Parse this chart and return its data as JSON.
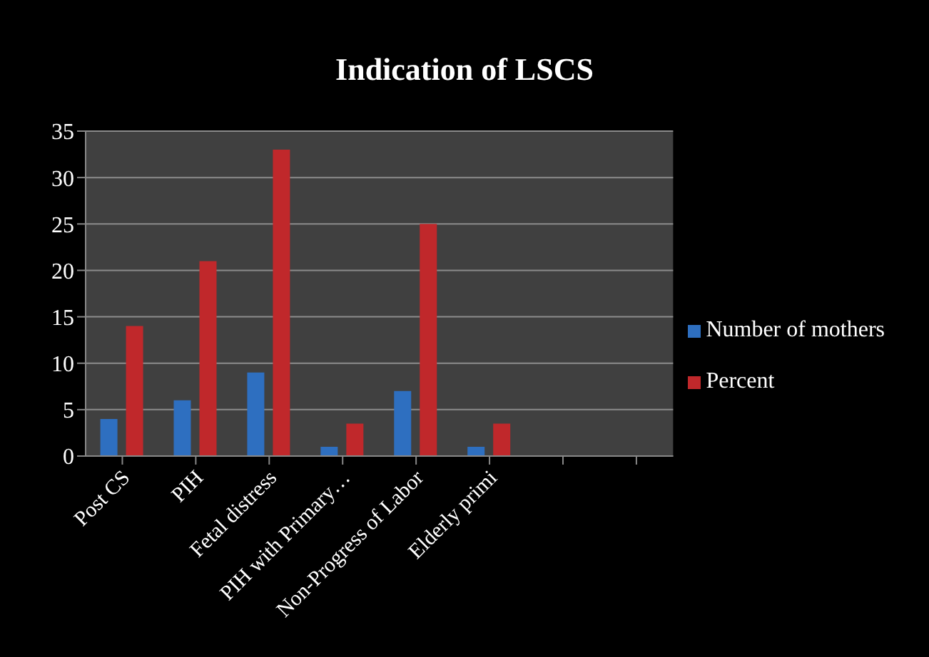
{
  "chart_data": {
    "type": "bar",
    "title": "Indication of LSCS",
    "categories": [
      "Post CS",
      "PIH",
      "Fetal distress",
      "PIH with Primary…",
      "Non-Progress of Labor",
      "Elderly primi",
      null,
      null
    ],
    "series": [
      {
        "name": "Number of mothers",
        "color": "#2e6fc0",
        "values": [
          4,
          6,
          9,
          1,
          7,
          1,
          null,
          null
        ]
      },
      {
        "name": "Percent",
        "color": "#c0282b",
        "values": [
          14,
          21,
          33,
          3.5,
          25,
          3.5,
          null,
          null
        ]
      }
    ],
    "ylim": [
      0,
      35
    ],
    "yticks": [
      0,
      5,
      10,
      15,
      20,
      25,
      30,
      35
    ],
    "grid": "y",
    "legend": "right"
  }
}
